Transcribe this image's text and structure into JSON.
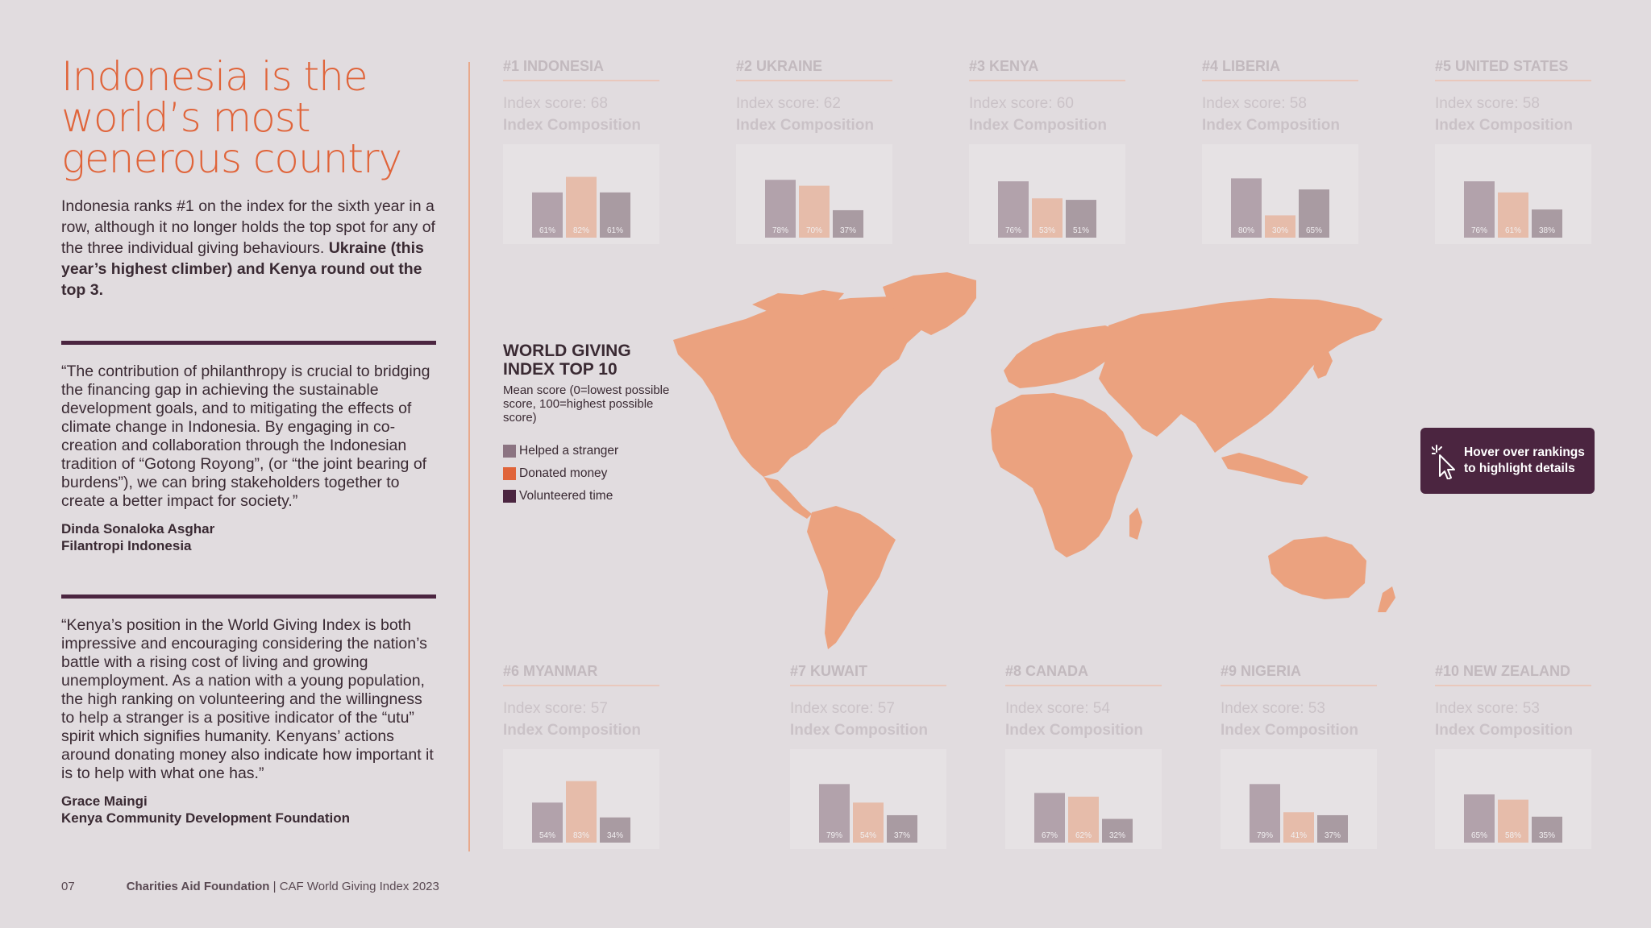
{
  "headline": "Indonesia is the world’s most generous country",
  "intro": {
    "text": "Indonesia ranks #1 on the index for the sixth year in a row, although it no longer holds the top spot for any of the three individual giving behaviours. ",
    "bold": "Ukraine (this year’s highest climber) and Kenya round out the top 3."
  },
  "quotes": [
    {
      "text": "“The contribution of philanthropy is crucial to bridging the financing gap in achieving the sustainable development goals, and to mitigating the effects of climate change in Indonesia. By engaging in co-creation and collaboration through the Indonesian tradition of “Gotong Royong”, (or “the joint bearing of burdens”), we can bring stakeholders together to create a better impact for society.”",
      "name": "Dinda Sonaloka Asghar",
      "org": "Filantropi Indonesia"
    },
    {
      "text": "“Kenya’s position in the World Giving Index is both impressive and encouraging considering the nation’s battle with a rising cost of living and growing unemployment. As a nation with a young population, the high ranking on volunteering and the willingness to help a stranger is a positive indicator of the “utu” spirit which signifies humanity. Kenyans’ actions around donating money also indicate how important it is to help with what one has.”",
      "name": "Grace Maingi",
      "org": "Kenya Community Development Foundation"
    }
  ],
  "footer": {
    "page": "07",
    "org": "Charities Aid Foundation",
    "sep": " | ",
    "pub": "CAF World Giving Index 2023"
  },
  "legend": {
    "title": "WORLD GIVING\nINDEX TOP 10",
    "subtitle": "Mean score (0=lowest possible score, 100=highest possible score)",
    "items": [
      {
        "label": "Helped a stranger",
        "color": "#8c7482"
      },
      {
        "label": "Donated money",
        "color": "#e0643a"
      },
      {
        "label": "Volunteered time",
        "color": "#4b2540"
      }
    ]
  },
  "card_labels": {
    "score": "Index score:",
    "composition": "Index Composition"
  },
  "chart_data": {
    "type": "bar",
    "series_names": [
      "Helped a stranger",
      "Donated money",
      "Volunteered time"
    ],
    "countries": [
      {
        "title": "#1 INDONESIA",
        "score": "68",
        "values": [
          61,
          82,
          61
        ],
        "labels": [
          "61%",
          "82%",
          "61%"
        ]
      },
      {
        "title": "#2 UKRAINE",
        "score": "62",
        "values": [
          78,
          70,
          37
        ],
        "labels": [
          "78%",
          "70%",
          "37%"
        ]
      },
      {
        "title": "#3 KENYA",
        "score": "60",
        "values": [
          76,
          53,
          51
        ],
        "labels": [
          "76%",
          "53%",
          "51%"
        ]
      },
      {
        "title": "#4 LIBERIA",
        "score": "58",
        "values": [
          80,
          30,
          65
        ],
        "labels": [
          "80%",
          "30%",
          "65%"
        ]
      },
      {
        "title": "#5 UNITED STATES",
        "score": "58",
        "values": [
          76,
          61,
          38
        ],
        "labels": [
          "76%",
          "61%",
          "38%"
        ]
      },
      {
        "title": "#6 MYANMAR",
        "score": "57",
        "values": [
          54,
          83,
          34
        ],
        "labels": [
          "54%",
          "83%",
          "34%"
        ]
      },
      {
        "title": "#7 KUWAIT",
        "score": "57",
        "values": [
          79,
          54,
          37
        ],
        "labels": [
          "79%",
          "54%",
          "37%"
        ]
      },
      {
        "title": "#8 CANADA",
        "score": "54",
        "values": [
          67,
          62,
          32
        ],
        "labels": [
          "67%",
          "62%",
          "32%"
        ]
      },
      {
        "title": "#9 NIGERIA",
        "score": "53",
        "values": [
          79,
          41,
          37
        ],
        "labels": [
          "79%",
          "41%",
          "37%"
        ]
      },
      {
        "title": "#10 NEW ZEALAND",
        "score": "53",
        "values": [
          65,
          58,
          35
        ],
        "labels": [
          "65%",
          "58%",
          "35%"
        ]
      }
    ]
  },
  "tooltip": {
    "text": "Hover over rankings to highlight details",
    "icon": "cursor-click-icon"
  },
  "colors": {
    "accent": "#e0643a",
    "plum": "#4b2540",
    "map": "#eba27f",
    "background": "#e1dcdf"
  }
}
